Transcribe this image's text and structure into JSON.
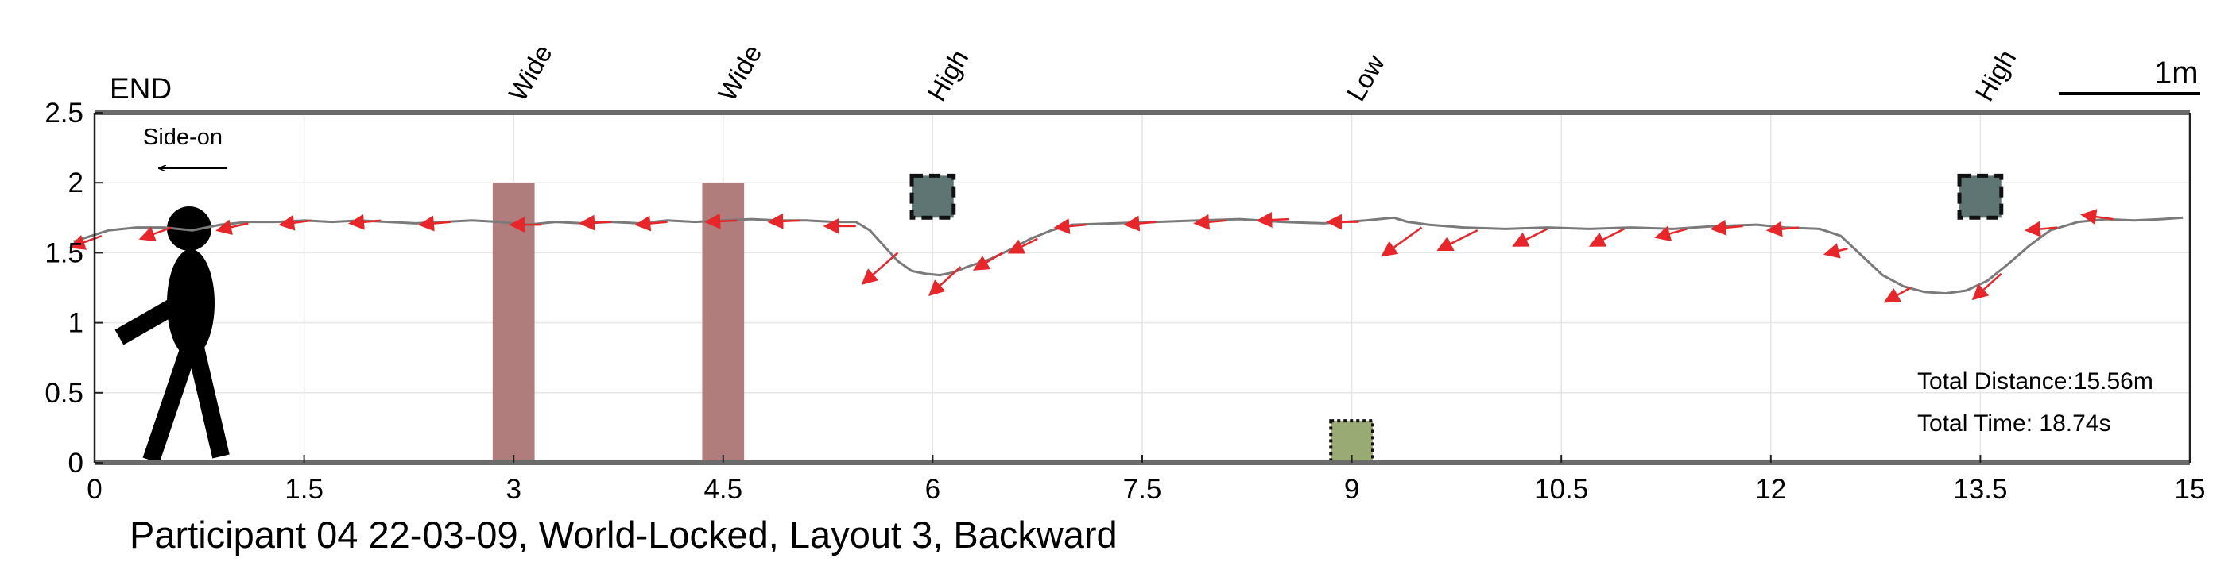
{
  "chart_data": {
    "type": "line",
    "caption": "Participant 04 22-03-09, World-Locked, Layout 3, Backward",
    "end_label": "END",
    "direction_label": "Side-on",
    "scale_label": "1m",
    "stats": [
      "Total Distance:15.56m",
      "Total Time: 18.74s"
    ],
    "xlim": [
      0,
      15
    ],
    "ylim": [
      0,
      2.5
    ],
    "x_ticks": [
      0,
      1.5,
      3,
      4.5,
      6,
      7.5,
      9,
      10.5,
      12,
      13.5,
      15
    ],
    "x_tick_labels": [
      "0",
      "1.5",
      "3",
      "4.5",
      "6",
      "7.5",
      "9",
      "10.5",
      "12",
      "13.5",
      "15"
    ],
    "y_ticks": [
      0,
      0.5,
      1,
      1.5,
      2,
      2.5
    ],
    "y_tick_labels": [
      "0",
      "0.5",
      "1",
      "1.5",
      "2",
      "2.5"
    ],
    "grid": true,
    "colors": {
      "path": "#7a7a7a",
      "arrows": "#e8262a",
      "wide_obstacle": "#b07c7c",
      "high_obstacle": "#5f7574",
      "low_obstacle": "#9aaa74",
      "axis_border": "#6b6b6b"
    },
    "obstacles": [
      {
        "label": "Wide",
        "type": "wide",
        "x": [
          2.85,
          3.15
        ],
        "y": [
          0,
          2.0
        ]
      },
      {
        "label": "Wide",
        "type": "wide",
        "x": [
          4.35,
          4.65
        ],
        "y": [
          0,
          2.0
        ]
      },
      {
        "label": "High",
        "type": "high",
        "x": [
          5.85,
          6.15
        ],
        "y": [
          1.75,
          2.05
        ]
      },
      {
        "label": "Low",
        "type": "low",
        "x": [
          8.85,
          9.15
        ],
        "y": [
          0,
          0.3
        ]
      },
      {
        "label": "High",
        "type": "high",
        "x": [
          13.35,
          13.65
        ],
        "y": [
          1.75,
          2.05
        ]
      }
    ],
    "path": [
      [
        -0.15,
        1.58
      ],
      [
        0.1,
        1.66
      ],
      [
        0.3,
        1.68
      ],
      [
        0.5,
        1.68
      ],
      [
        0.7,
        1.66
      ],
      [
        0.9,
        1.7
      ],
      [
        1.1,
        1.72
      ],
      [
        1.3,
        1.72
      ],
      [
        1.5,
        1.73
      ],
      [
        1.7,
        1.72
      ],
      [
        1.9,
        1.73
      ],
      [
        2.1,
        1.72
      ],
      [
        2.3,
        1.71
      ],
      [
        2.5,
        1.72
      ],
      [
        2.7,
        1.73
      ],
      [
        2.9,
        1.72
      ],
      [
        3.1,
        1.7
      ],
      [
        3.3,
        1.72
      ],
      [
        3.5,
        1.71
      ],
      [
        3.7,
        1.72
      ],
      [
        3.9,
        1.71
      ],
      [
        4.1,
        1.73
      ],
      [
        4.3,
        1.72
      ],
      [
        4.5,
        1.73
      ],
      [
        4.7,
        1.74
      ],
      [
        4.9,
        1.73
      ],
      [
        5.1,
        1.73
      ],
      [
        5.3,
        1.72
      ],
      [
        5.45,
        1.72
      ],
      [
        5.55,
        1.66
      ],
      [
        5.65,
        1.55
      ],
      [
        5.75,
        1.44
      ],
      [
        5.85,
        1.37
      ],
      [
        5.95,
        1.35
      ],
      [
        6.05,
        1.34
      ],
      [
        6.15,
        1.36
      ],
      [
        6.25,
        1.4
      ],
      [
        6.4,
        1.45
      ],
      [
        6.55,
        1.52
      ],
      [
        6.7,
        1.6
      ],
      [
        6.85,
        1.66
      ],
      [
        7.0,
        1.7
      ],
      [
        7.3,
        1.71
      ],
      [
        7.6,
        1.72
      ],
      [
        7.9,
        1.73
      ],
      [
        8.2,
        1.74
      ],
      [
        8.5,
        1.72
      ],
      [
        8.8,
        1.71
      ],
      [
        9.1,
        1.73
      ],
      [
        9.3,
        1.75
      ],
      [
        9.4,
        1.72
      ],
      [
        9.55,
        1.7
      ],
      [
        9.8,
        1.68
      ],
      [
        10.1,
        1.67
      ],
      [
        10.4,
        1.68
      ],
      [
        10.7,
        1.67
      ],
      [
        11.0,
        1.68
      ],
      [
        11.3,
        1.67
      ],
      [
        11.6,
        1.69
      ],
      [
        11.9,
        1.7
      ],
      [
        12.1,
        1.68
      ],
      [
        12.35,
        1.67
      ],
      [
        12.5,
        1.62
      ],
      [
        12.65,
        1.48
      ],
      [
        12.8,
        1.34
      ],
      [
        12.95,
        1.26
      ],
      [
        13.1,
        1.22
      ],
      [
        13.25,
        1.21
      ],
      [
        13.4,
        1.23
      ],
      [
        13.55,
        1.3
      ],
      [
        13.7,
        1.42
      ],
      [
        13.85,
        1.55
      ],
      [
        14.0,
        1.66
      ],
      [
        14.2,
        1.72
      ],
      [
        14.4,
        1.74
      ],
      [
        14.6,
        1.73
      ],
      [
        14.8,
        1.74
      ],
      [
        14.95,
        1.75
      ]
    ],
    "arrows": [
      {
        "x": 0.05,
        "y": 1.62,
        "dx": -0.22,
        "dy": -0.08
      },
      {
        "x": 0.55,
        "y": 1.68,
        "dx": -0.22,
        "dy": -0.08
      },
      {
        "x": 1.1,
        "y": 1.71,
        "dx": -0.22,
        "dy": -0.05
      },
      {
        "x": 1.55,
        "y": 1.73,
        "dx": -0.22,
        "dy": -0.03
      },
      {
        "x": 2.05,
        "y": 1.73,
        "dx": -0.22,
        "dy": -0.02
      },
      {
        "x": 2.55,
        "y": 1.72,
        "dx": -0.22,
        "dy": -0.02
      },
      {
        "x": 3.2,
        "y": 1.7,
        "dx": -0.22,
        "dy": 0.0
      },
      {
        "x": 3.7,
        "y": 1.72,
        "dx": -0.22,
        "dy": -0.01
      },
      {
        "x": 4.1,
        "y": 1.72,
        "dx": -0.22,
        "dy": -0.02
      },
      {
        "x": 4.6,
        "y": 1.73,
        "dx": -0.22,
        "dy": -0.01
      },
      {
        "x": 5.05,
        "y": 1.73,
        "dx": -0.22,
        "dy": -0.01
      },
      {
        "x": 5.45,
        "y": 1.69,
        "dx": -0.22,
        "dy": 0.0
      },
      {
        "x": 5.75,
        "y": 1.5,
        "dx": -0.25,
        "dy": -0.22
      },
      {
        "x": 6.2,
        "y": 1.4,
        "dx": -0.22,
        "dy": -0.2
      },
      {
        "x": 6.5,
        "y": 1.5,
        "dx": -0.2,
        "dy": -0.12
      },
      {
        "x": 6.75,
        "y": 1.6,
        "dx": -0.2,
        "dy": -0.1
      },
      {
        "x": 7.1,
        "y": 1.7,
        "dx": -0.22,
        "dy": -0.02
      },
      {
        "x": 7.6,
        "y": 1.72,
        "dx": -0.22,
        "dy": -0.02
      },
      {
        "x": 8.1,
        "y": 1.73,
        "dx": -0.22,
        "dy": -0.02
      },
      {
        "x": 8.55,
        "y": 1.74,
        "dx": -0.22,
        "dy": -0.01
      },
      {
        "x": 9.05,
        "y": 1.72,
        "dx": -0.22,
        "dy": 0.0
      },
      {
        "x": 9.5,
        "y": 1.68,
        "dx": -0.28,
        "dy": -0.2
      },
      {
        "x": 9.9,
        "y": 1.66,
        "dx": -0.28,
        "dy": -0.14
      },
      {
        "x": 10.4,
        "y": 1.67,
        "dx": -0.24,
        "dy": -0.12
      },
      {
        "x": 10.95,
        "y": 1.67,
        "dx": -0.24,
        "dy": -0.12
      },
      {
        "x": 11.4,
        "y": 1.67,
        "dx": -0.22,
        "dy": -0.06
      },
      {
        "x": 11.8,
        "y": 1.69,
        "dx": -0.22,
        "dy": -0.02
      },
      {
        "x": 12.2,
        "y": 1.68,
        "dx": -0.22,
        "dy": -0.02
      },
      {
        "x": 12.55,
        "y": 1.53,
        "dx": -0.16,
        "dy": -0.04
      },
      {
        "x": 13.0,
        "y": 1.25,
        "dx": -0.18,
        "dy": -0.1
      },
      {
        "x": 13.65,
        "y": 1.35,
        "dx": -0.2,
        "dy": -0.18
      },
      {
        "x": 14.05,
        "y": 1.68,
        "dx": -0.22,
        "dy": -0.02
      },
      {
        "x": 14.45,
        "y": 1.74,
        "dx": -0.22,
        "dy": 0.03
      }
    ]
  }
}
